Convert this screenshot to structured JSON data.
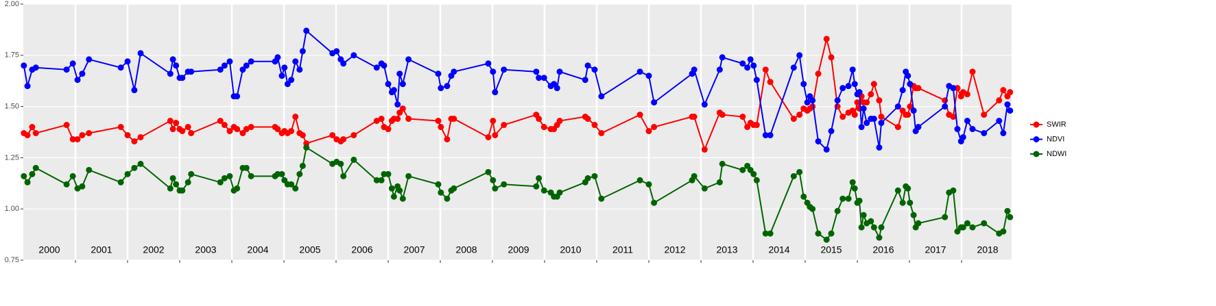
{
  "chart_data": {
    "type": "line",
    "x": [
      2000.01,
      2000.08,
      2000.17,
      2000.24,
      2000.83,
      2000.95,
      2001.04,
      2001.13,
      2001.26,
      2001.87,
      2002.0,
      2002.13,
      2002.25,
      2002.82,
      2002.87,
      2002.93,
      2003.0,
      2003.05,
      2003.16,
      2003.22,
      2003.78,
      2003.86,
      2003.96,
      2004.04,
      2004.1,
      2004.21,
      2004.28,
      2004.37,
      2004.83,
      2004.88,
      2004.96,
      2005.01,
      2005.07,
      2005.14,
      2005.22,
      2005.3,
      2005.36,
      2005.43,
      2005.93,
      2006.01,
      2006.09,
      2006.14,
      2006.34,
      2006.78,
      2006.87,
      2006.92,
      2007.0,
      2007.07,
      2007.11,
      2007.18,
      2007.22,
      2007.28,
      2007.39,
      2007.96,
      2008.01,
      2008.13,
      2008.21,
      2008.26,
      2008.92,
      2009.01,
      2009.05,
      2009.22,
      2009.84,
      2009.89,
      2009.99,
      2010.12,
      2010.18,
      2010.24,
      2010.29,
      2010.78,
      2010.83,
      2010.96,
      2011.09,
      2011.83,
      2012.0,
      2012.1,
      2012.83,
      2012.87,
      2013.07,
      2013.36,
      2013.41,
      2013.8,
      2013.89,
      2013.95,
      2014.01,
      2014.07,
      2014.24,
      2014.33,
      2014.78,
      2014.89,
      2014.97,
      2015.04,
      2015.09,
      2015.14,
      2015.25,
      2015.41,
      2015.5,
      2015.62,
      2015.72,
      2015.83,
      2015.91,
      2015.95,
      2016.0,
      2016.04,
      2016.08,
      2016.12,
      2016.18,
      2016.26,
      2016.32,
      2016.42,
      2016.46,
      2016.78,
      2016.87,
      2016.93,
      2016.97,
      2017.01,
      2017.08,
      2017.12,
      2017.17,
      2017.68,
      2017.76,
      2017.84,
      2017.92,
      2017.99,
      2018.03,
      2018.11,
      2018.21,
      2018.43,
      2018.72,
      2018.8,
      2018.88,
      2018.93
    ],
    "series": [
      {
        "name": "SWIR",
        "color": "#ff0000",
        "values": [
          1.37,
          1.36,
          1.4,
          1.37,
          1.41,
          1.34,
          1.34,
          1.36,
          1.37,
          1.4,
          1.36,
          1.33,
          1.35,
          1.43,
          1.39,
          1.42,
          1.39,
          1.38,
          1.4,
          1.37,
          1.43,
          1.41,
          1.38,
          1.4,
          1.39,
          1.37,
          1.39,
          1.4,
          1.4,
          1.39,
          1.37,
          1.38,
          1.37,
          1.38,
          1.45,
          1.37,
          1.36,
          1.32,
          1.36,
          1.34,
          1.33,
          1.34,
          1.36,
          1.43,
          1.44,
          1.4,
          1.39,
          1.43,
          1.44,
          1.44,
          1.47,
          1.49,
          1.44,
          1.43,
          1.4,
          1.34,
          1.44,
          1.44,
          1.35,
          1.43,
          1.36,
          1.41,
          1.46,
          1.44,
          1.4,
          1.39,
          1.39,
          1.41,
          1.43,
          1.45,
          1.44,
          1.41,
          1.37,
          1.46,
          1.38,
          1.4,
          1.45,
          1.45,
          1.29,
          1.47,
          1.46,
          1.45,
          1.4,
          1.42,
          1.41,
          1.41,
          1.68,
          1.62,
          1.44,
          1.46,
          1.49,
          1.48,
          1.49,
          1.5,
          1.66,
          1.83,
          1.74,
          1.5,
          1.45,
          1.47,
          1.48,
          1.46,
          1.52,
          1.49,
          1.55,
          1.52,
          1.52,
          1.56,
          1.61,
          1.53,
          1.45,
          1.4,
          1.48,
          1.46,
          1.46,
          1.5,
          1.6,
          1.59,
          1.59,
          1.53,
          1.46,
          1.45,
          1.59,
          1.55,
          1.57,
          1.56,
          1.67,
          1.46,
          1.53,
          1.58,
          1.55,
          1.57
        ]
      },
      {
        "name": "NDVI",
        "color": "#0000ff",
        "values": [
          1.7,
          1.6,
          1.68,
          1.69,
          1.68,
          1.71,
          1.63,
          1.66,
          1.73,
          1.69,
          1.72,
          1.58,
          1.76,
          1.66,
          1.73,
          1.7,
          1.64,
          1.64,
          1.67,
          1.67,
          1.68,
          1.7,
          1.72,
          1.55,
          1.55,
          1.68,
          1.7,
          1.72,
          1.72,
          1.74,
          1.65,
          1.69,
          1.61,
          1.63,
          1.72,
          1.68,
          1.77,
          1.87,
          1.76,
          1.77,
          1.73,
          1.71,
          1.75,
          1.69,
          1.71,
          1.7,
          1.61,
          1.57,
          1.58,
          1.51,
          1.66,
          1.61,
          1.73,
          1.66,
          1.59,
          1.6,
          1.65,
          1.67,
          1.71,
          1.67,
          1.57,
          1.68,
          1.67,
          1.64,
          1.64,
          1.6,
          1.61,
          1.59,
          1.67,
          1.63,
          1.7,
          1.68,
          1.55,
          1.67,
          1.65,
          1.52,
          1.66,
          1.68,
          1.51,
          1.68,
          1.74,
          1.71,
          1.69,
          1.73,
          1.7,
          1.63,
          1.36,
          1.36,
          1.69,
          1.75,
          1.61,
          1.52,
          1.55,
          1.53,
          1.33,
          1.29,
          1.38,
          1.53,
          1.59,
          1.6,
          1.68,
          1.61,
          1.56,
          1.57,
          1.4,
          1.49,
          1.42,
          1.44,
          1.44,
          1.3,
          1.42,
          1.5,
          1.58,
          1.67,
          1.65,
          1.61,
          1.48,
          1.38,
          1.4,
          1.5,
          1.6,
          1.59,
          1.39,
          1.33,
          1.35,
          1.43,
          1.39,
          1.37,
          1.43,
          1.37,
          1.51,
          1.48
        ]
      },
      {
        "name": "NDWI",
        "color": "#006400",
        "values": [
          1.16,
          1.13,
          1.17,
          1.2,
          1.12,
          1.16,
          1.1,
          1.11,
          1.19,
          1.13,
          1.17,
          1.2,
          1.22,
          1.1,
          1.15,
          1.12,
          1.09,
          1.09,
          1.13,
          1.17,
          1.13,
          1.15,
          1.16,
          1.09,
          1.1,
          1.2,
          1.2,
          1.16,
          1.16,
          1.17,
          1.17,
          1.14,
          1.12,
          1.12,
          1.1,
          1.17,
          1.21,
          1.3,
          1.22,
          1.23,
          1.22,
          1.16,
          1.24,
          1.14,
          1.14,
          1.17,
          1.17,
          1.1,
          1.06,
          1.11,
          1.09,
          1.05,
          1.16,
          1.12,
          1.08,
          1.05,
          1.09,
          1.1,
          1.18,
          1.14,
          1.1,
          1.12,
          1.11,
          1.15,
          1.09,
          1.08,
          1.06,
          1.06,
          1.08,
          1.13,
          1.15,
          1.16,
          1.05,
          1.14,
          1.12,
          1.03,
          1.14,
          1.16,
          1.1,
          1.13,
          1.22,
          1.19,
          1.21,
          1.19,
          1.17,
          1.14,
          0.88,
          0.88,
          1.16,
          1.18,
          1.06,
          1.03,
          1.01,
          1.0,
          0.88,
          0.85,
          0.88,
          0.99,
          1.05,
          1.05,
          1.13,
          1.1,
          1.03,
          1.04,
          0.91,
          0.97,
          0.93,
          0.94,
          0.91,
          0.86,
          0.91,
          1.09,
          1.03,
          1.11,
          1.1,
          1.03,
          0.97,
          0.91,
          0.93,
          0.96,
          1.08,
          1.09,
          0.89,
          0.91,
          0.91,
          0.93,
          0.91,
          0.93,
          0.88,
          0.89,
          0.99,
          0.96
        ]
      }
    ],
    "xlim": [
      2000,
      2018.96
    ],
    "xticks": [
      {
        "value": 2000.5,
        "label": "2000"
      },
      {
        "value": 2001.5,
        "label": "2001"
      },
      {
        "value": 2002.5,
        "label": "2002"
      },
      {
        "value": 2003.5,
        "label": "2003"
      },
      {
        "value": 2004.5,
        "label": "2004"
      },
      {
        "value": 2005.5,
        "label": "2005"
      },
      {
        "value": 2006.5,
        "label": "2006"
      },
      {
        "value": 2007.5,
        "label": "2007"
      },
      {
        "value": 2008.5,
        "label": "2008"
      },
      {
        "value": 2009.5,
        "label": "2009"
      },
      {
        "value": 2010.5,
        "label": "2010"
      },
      {
        "value": 2011.5,
        "label": "2011"
      },
      {
        "value": 2012.5,
        "label": "2012"
      },
      {
        "value": 2013.5,
        "label": "2013"
      },
      {
        "value": 2014.5,
        "label": "2014"
      },
      {
        "value": 2015.5,
        "label": "2015"
      },
      {
        "value": 2016.5,
        "label": "2016"
      },
      {
        "value": 2017.5,
        "label": "2017"
      },
      {
        "value": 2018.5,
        "label": "2018"
      }
    ],
    "xgrid": [
      2001,
      2002,
      2003,
      2004,
      2005,
      2006,
      2007,
      2008,
      2009,
      2010,
      2011,
      2012,
      2013,
      2014,
      2015,
      2016,
      2017,
      2018
    ],
    "ylim": [
      0.75,
      2.0
    ],
    "yticks": [
      0.75,
      {
        "value": 1,
        "label": "1.00"
      },
      1.25,
      {
        "value": 1.5,
        "label": "1.50"
      },
      1.75,
      {
        "value": 2,
        "label": "2.00"
      }
    ],
    "grid": true,
    "legend": "right"
  }
}
